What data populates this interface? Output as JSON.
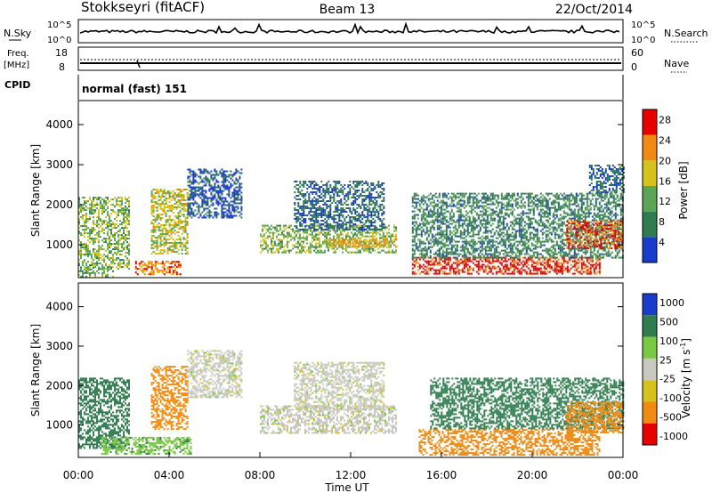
{
  "header": {
    "station": "Stokkseyri (fitACF)",
    "beam": "Beam 13",
    "date": "22/Oct/2014"
  },
  "noise_panel": {
    "left_label": "N.Sky",
    "right_label": "N.Search",
    "ticks_left": [
      "10^5",
      "10^0"
    ],
    "ticks_right": [
      "10^5",
      "10^0"
    ]
  },
  "freq_panel": {
    "left_label_line1": "Freq.",
    "left_label_line2": "[MHz]",
    "right_label": "Nave",
    "ticks_left": [
      "18",
      "8"
    ],
    "ticks_right": [
      "60",
      "0"
    ]
  },
  "cpid_panel": {
    "label": "CPID",
    "text": "normal (fast) 151"
  },
  "colors": {
    "blue": "#1a3ccc",
    "darkgreen": "#2f7d4f",
    "green": "#5aa656",
    "lightgreen": "#7ac943",
    "yellow": "#d6c21a",
    "orange": "#f08a10",
    "red": "#e60000",
    "grey": "#c8c8c0"
  },
  "chart_data": [
    {
      "type": "heatmap",
      "name": "power",
      "ylabel": "Slant Range [km]",
      "yticks": [
        1000,
        2000,
        3000,
        4000
      ],
      "ylim": [
        180,
        4600
      ],
      "xlim": [
        0,
        24
      ],
      "colorbar": {
        "label": "Power [dB]",
        "ticks": [
          "4",
          "8",
          "12",
          "16",
          "20",
          "24",
          "28"
        ],
        "range": [
          0,
          30
        ]
      },
      "features": [
        {
          "t0": 0.0,
          "t1": 2.2,
          "r0": 400,
          "r1": 2200,
          "level": 14
        },
        {
          "t0": 0.0,
          "t1": 1.5,
          "r0": 200,
          "r1": 450,
          "level": 12
        },
        {
          "t0": 2.5,
          "t1": 4.5,
          "r0": 250,
          "r1": 600,
          "level": 22
        },
        {
          "t0": 3.2,
          "t1": 4.8,
          "r0": 800,
          "r1": 2400,
          "level": 16
        },
        {
          "t0": 4.8,
          "t1": 7.2,
          "r0": 1700,
          "r1": 2900,
          "level": 5
        },
        {
          "t0": 8.0,
          "t1": 14.0,
          "r0": 800,
          "r1": 1500,
          "level": 14
        },
        {
          "t0": 11.0,
          "t1": 14.0,
          "r0": 950,
          "r1": 1150,
          "level": 20
        },
        {
          "t0": 9.5,
          "t1": 13.5,
          "r0": 1400,
          "r1": 2600,
          "level": 7
        },
        {
          "t0": 14.7,
          "t1": 23.0,
          "r0": 300,
          "r1": 700,
          "level": 26
        },
        {
          "t0": 14.7,
          "t1": 24.0,
          "r0": 700,
          "r1": 2300,
          "level": 9
        },
        {
          "t0": 21.5,
          "t1": 24.0,
          "r0": 900,
          "r1": 1600,
          "level": 24
        },
        {
          "t0": 22.5,
          "t1": 24.0,
          "r0": 2300,
          "r1": 3000,
          "level": 6
        }
      ]
    },
    {
      "type": "heatmap",
      "name": "velocity",
      "ylabel": "Slant Range [km]",
      "xlabel": "Time UT",
      "xticks": [
        "00:00",
        "04:00",
        "08:00",
        "12:00",
        "16:00",
        "20:00",
        "00:00"
      ],
      "yticks": [
        1000,
        2000,
        3000,
        4000
      ],
      "ylim": [
        180,
        4600
      ],
      "xlim": [
        0,
        24
      ],
      "colorbar": {
        "label": "Velocity [m s^-1]",
        "ticks": [
          "1000",
          "500",
          "100",
          "25",
          "-25",
          "-100",
          "-500",
          "-1000"
        ]
      },
      "features": [
        {
          "t0": 0.0,
          "t1": 2.2,
          "r0": 400,
          "r1": 2200,
          "level": 300
        },
        {
          "t0": 1.0,
          "t1": 5.0,
          "r0": 250,
          "r1": 700,
          "level": 80
        },
        {
          "t0": 3.2,
          "t1": 4.8,
          "r0": 900,
          "r1": 2500,
          "level": -300
        },
        {
          "t0": 4.8,
          "t1": 7.2,
          "r0": 1700,
          "r1": 2900,
          "level": 0
        },
        {
          "t0": 8.0,
          "t1": 14.0,
          "r0": 800,
          "r1": 1500,
          "level": 0
        },
        {
          "t0": 9.5,
          "t1": 13.5,
          "r0": 1400,
          "r1": 2600,
          "level": 0
        },
        {
          "t0": 15.0,
          "t1": 23.0,
          "r0": 250,
          "r1": 900,
          "level": -300
        },
        {
          "t0": 15.5,
          "t1": 24.0,
          "r0": 900,
          "r1": 2200,
          "level": 200
        },
        {
          "t0": 21.5,
          "t1": 24.0,
          "r0": 800,
          "r1": 1600,
          "level": -200
        }
      ]
    }
  ]
}
